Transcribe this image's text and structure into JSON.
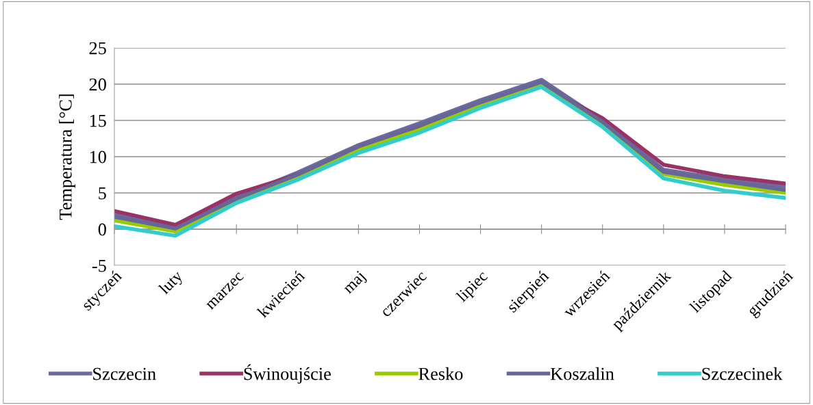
{
  "chart_data": {
    "type": "line",
    "ylabel": "Temperatura [°C]",
    "categories": [
      "styczeń",
      "luty",
      "marzec",
      "kwiecień",
      "maj",
      "czerwiec",
      "lipiec",
      "sierpień",
      "wrzesień",
      "październik",
      "listopad",
      "grudzień"
    ],
    "series": [
      {
        "name": "Szczecin",
        "color": "#6b6b9f",
        "values": [
          2.0,
          0.3,
          4.4,
          7.8,
          11.6,
          14.6,
          17.8,
          20.6,
          15.0,
          8.2,
          6.9,
          5.9
        ]
      },
      {
        "name": "Świnoujście",
        "color": "#993366",
        "values": [
          2.5,
          0.6,
          4.9,
          7.5,
          11.2,
          14.0,
          17.3,
          19.8,
          15.3,
          8.9,
          7.3,
          6.3
        ]
      },
      {
        "name": "Resko",
        "color": "#99cc00",
        "values": [
          1.2,
          -0.3,
          4.0,
          7.2,
          10.9,
          13.7,
          17.0,
          20.1,
          14.6,
          7.6,
          6.1,
          5.0
        ]
      },
      {
        "name": "Koszalin",
        "color": "#666699",
        "values": [
          1.7,
          0.1,
          4.2,
          7.5,
          11.4,
          14.3,
          17.5,
          20.3,
          14.8,
          7.9,
          6.6,
          5.4
        ]
      },
      {
        "name": "Szczecinek",
        "color": "#33cccc",
        "values": [
          0.4,
          -0.9,
          3.6,
          6.8,
          10.5,
          13.3,
          16.7,
          19.6,
          14.1,
          7.0,
          5.3,
          4.3
        ]
      }
    ],
    "ylim": [
      -5,
      25
    ],
    "yticks": [
      -5,
      0,
      5,
      10,
      15,
      20,
      25
    ],
    "grid": "y",
    "legend": "bottom",
    "marker": "none",
    "line_style": "solid"
  }
}
